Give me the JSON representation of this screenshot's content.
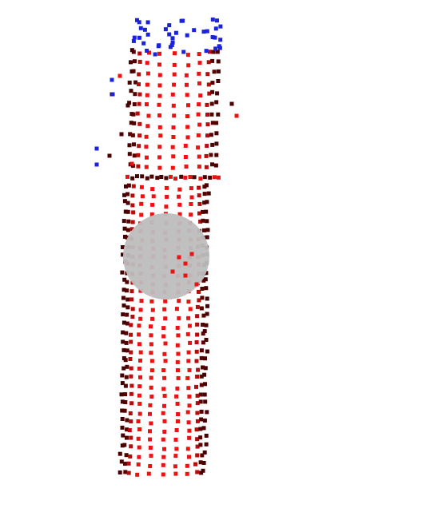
{
  "scene": {
    "type": "3d-point-cloud",
    "background": "#ffffff",
    "colors": {
      "surface_points": "#ee1111",
      "edge_points": "#4a0000",
      "top_points": "#1a22dd",
      "sphere": "#bdbdbd"
    },
    "objects": [
      {
        "name": "upper-cylinder-segment",
        "color_role": "surface_points"
      },
      {
        "name": "lower-cylinder-segment",
        "color_role": "surface_points"
      },
      {
        "name": "top-cap-points",
        "color_role": "top_points"
      },
      {
        "name": "grey-sphere",
        "color_role": "sphere"
      }
    ]
  }
}
